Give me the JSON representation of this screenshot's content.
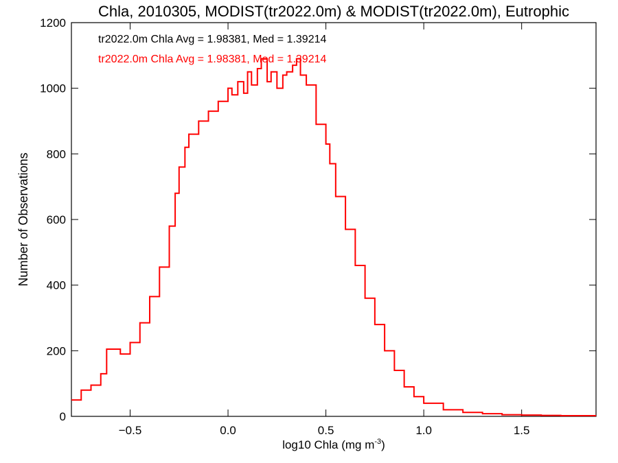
{
  "chart_data": {
    "type": "line",
    "title": "Chla, 2010305, MODIST(tr2022.0m) & MODIST(tr2022.0m), Eutrophic",
    "xlabel_base": "log10 Chla (mg m",
    "xlabel_sup": "-3",
    "xlabel_close": ")",
    "ylabel": "Number of Observations",
    "xlim": [
      -0.8,
      1.88
    ],
    "ylim": [
      0,
      1200
    ],
    "xticks": [
      -0.5,
      0.0,
      0.5,
      1.0,
      1.5
    ],
    "xtick_labels": [
      "−0.5",
      "0.0",
      "0.5",
      "1.0",
      "1.5"
    ],
    "yticks": [
      0,
      200,
      400,
      600,
      800,
      1000,
      1200
    ],
    "ytick_labels": [
      "0",
      "200",
      "400",
      "600",
      "800",
      "1000",
      "1200"
    ],
    "grid": false,
    "style": "histogram-step",
    "colors": {
      "series_black": "#000000",
      "series_red": "#ff0000",
      "axes": "#000000"
    },
    "annotations": [
      {
        "text": "tr2022.0m Chla Avg = 1.98381, Med = 1.39214",
        "color": "#000000"
      },
      {
        "text": "tr2022.0m Chla Avg = 1.98381, Med = 1.39214",
        "color": "#ff0000"
      }
    ],
    "series": [
      {
        "color": "#ff0000",
        "x": [
          -0.8,
          -0.75,
          -0.7,
          -0.65,
          -0.62,
          -0.6,
          -0.55,
          -0.5,
          -0.45,
          -0.4,
          -0.35,
          -0.3,
          -0.27,
          -0.25,
          -0.22,
          -0.2,
          -0.15,
          -0.1,
          -0.05,
          0.0,
          0.02,
          0.05,
          0.08,
          0.1,
          0.12,
          0.15,
          0.17,
          0.2,
          0.22,
          0.25,
          0.28,
          0.3,
          0.33,
          0.35,
          0.37,
          0.4,
          0.45,
          0.5,
          0.52,
          0.55,
          0.6,
          0.65,
          0.7,
          0.75,
          0.8,
          0.85,
          0.9,
          0.95,
          1.0,
          1.1,
          1.2,
          1.3,
          1.4,
          1.5,
          1.6,
          1.7,
          1.8,
          1.88
        ],
        "y": [
          50,
          80,
          95,
          130,
          205,
          205,
          190,
          225,
          285,
          365,
          455,
          580,
          680,
          760,
          820,
          860,
          900,
          930,
          960,
          1000,
          980,
          1020,
          985,
          1050,
          1010,
          1060,
          1090,
          1020,
          1050,
          1000,
          1040,
          1050,
          1070,
          1090,
          1040,
          1010,
          890,
          830,
          770,
          670,
          570,
          460,
          360,
          280,
          200,
          140,
          90,
          60,
          40,
          20,
          12,
          8,
          5,
          4,
          3,
          2,
          2,
          2
        ]
      }
    ]
  }
}
